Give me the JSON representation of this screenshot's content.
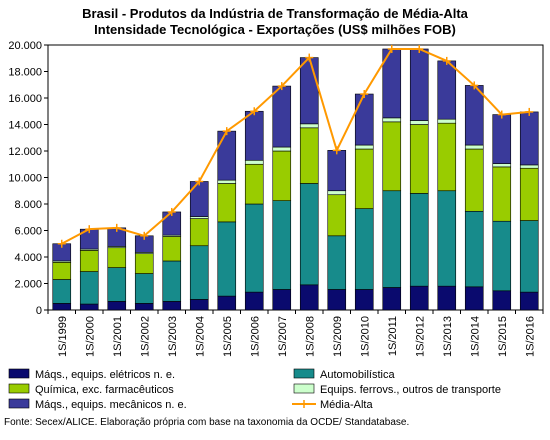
{
  "chart_data": {
    "type": "bar",
    "title_line1": "Brasil - Produtos da Indústria de Transformação de Média-Alta",
    "title_line2": "Intensidade Tecnológica - Exportações (US$ milhões FOB)",
    "categories": [
      "1S/1999",
      "1S/2000",
      "1S/2001",
      "1S/2002",
      "1S/2003",
      "1S/2004",
      "1S/2005",
      "1S/2006",
      "1S/2007",
      "1S/2008",
      "1S/2009",
      "1S/2010",
      "1S/2011",
      "1S/2012",
      "1S/2013",
      "1S/2014",
      "1S/2015",
      "1S/2016"
    ],
    "yticks": [
      "0",
      "2.000",
      "4.000",
      "6.000",
      "8.000",
      "10.000",
      "12.000",
      "14.000",
      "16.000",
      "18.000",
      "20.000"
    ],
    "ylim": [
      0,
      20000
    ],
    "series": [
      {
        "name": "Máqs., equips. elétricos n. e.",
        "color": "#0a0a6e",
        "values": [
          500,
          450,
          650,
          500,
          650,
          800,
          1050,
          1350,
          1550,
          1900,
          1550,
          1550,
          1700,
          1800,
          1800,
          1750,
          1450,
          1350
        ]
      },
      {
        "name": "Automobilística",
        "color": "#178b8b",
        "values": [
          1800,
          2450,
          2550,
          2250,
          3050,
          4050,
          5600,
          6650,
          6700,
          7650,
          4050,
          6100,
          7300,
          7000,
          7200,
          5700,
          5250,
          5400
        ]
      },
      {
        "name": "Química, exc. farmacêuticos",
        "color": "#99cc00",
        "values": [
          1300,
          1600,
          1500,
          1500,
          1850,
          2050,
          2900,
          3000,
          3750,
          4200,
          3100,
          4500,
          5200,
          5200,
          5100,
          4700,
          4100,
          3950
        ]
      },
      {
        "name": "Equips. ferrovs., outros de transporte",
        "color": "#ccffcc",
        "values": [
          100,
          100,
          100,
          100,
          100,
          150,
          250,
          300,
          300,
          300,
          300,
          300,
          300,
          300,
          300,
          300,
          250,
          250
        ]
      },
      {
        "name": "Máqs., equips. mecânicos  n. e.",
        "color": "#3a3a9a",
        "values": [
          1300,
          1500,
          1400,
          1250,
          1750,
          2650,
          3700,
          3700,
          4600,
          5000,
          3050,
          3850,
          5200,
          5400,
          4400,
          4500,
          3700,
          4000
        ]
      }
    ],
    "line": {
      "name": "Média-Alta",
      "color": "#ff9900",
      "values": [
        5000,
        6100,
        6200,
        5600,
        7400,
        9700,
        13500,
        15000,
        16900,
        19050,
        12050,
        16300,
        19700,
        19700,
        18800,
        16950,
        14750,
        14950
      ]
    },
    "legend_position": "bottom",
    "grid": false
  },
  "source": "Fonte: Secex/ALICE. Elaboração própria com base na taxonomia da OCDE/ Standatabase."
}
